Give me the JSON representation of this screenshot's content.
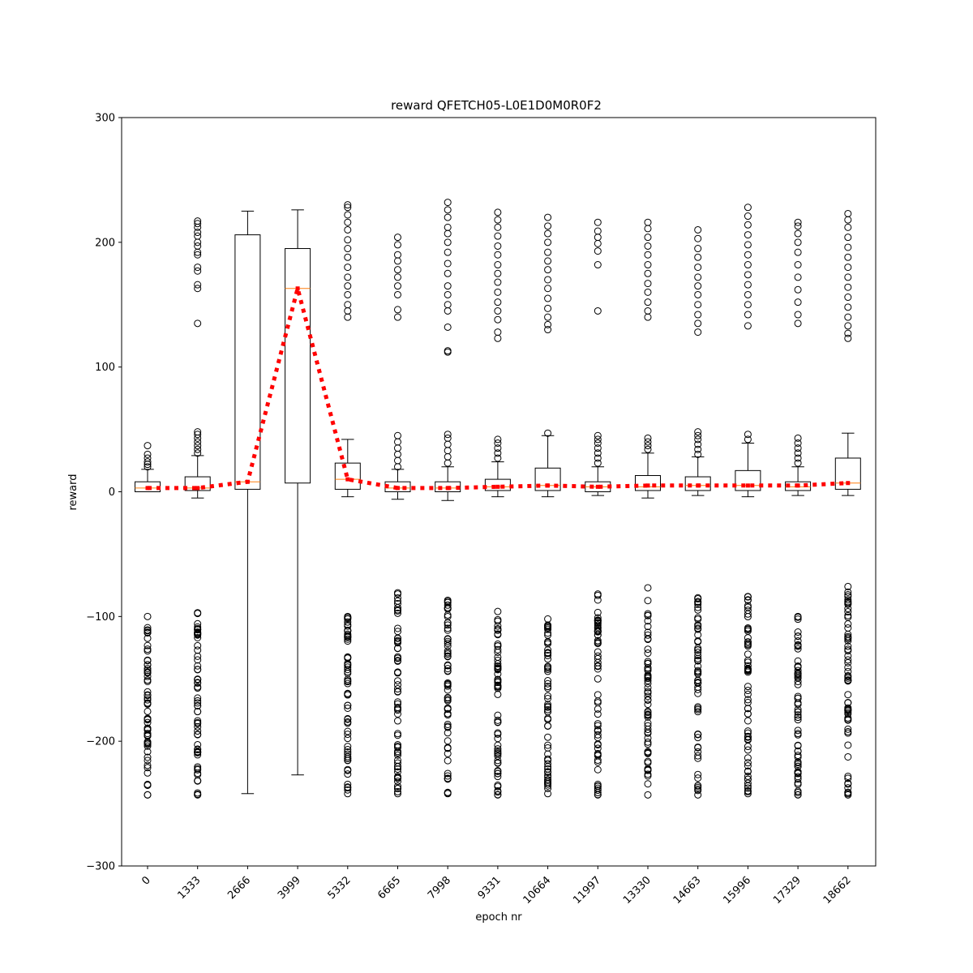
{
  "chart_data": {
    "type": "box",
    "title": "reward QFETCH05-L0E1D0M0R0F2",
    "xlabel": "epoch nr",
    "ylabel": "reward",
    "ylim": [
      -300,
      300
    ],
    "yticks": [
      -300,
      -200,
      -100,
      0,
      100,
      200,
      300
    ],
    "grid": false,
    "categories": [
      "0",
      "1333",
      "2666",
      "3999",
      "5332",
      "6665",
      "7998",
      "9331",
      "10664",
      "11997",
      "13330",
      "14663",
      "15996",
      "17329",
      "18662"
    ],
    "boxes": [
      {
        "q1": 0,
        "median": 3,
        "q3": 8,
        "whisker_low": 0,
        "whisker_high": 18,
        "outliers_high": [
          20,
          22,
          24,
          27,
          30,
          37
        ],
        "outliers_low_range": [
          -243,
          -100
        ]
      },
      {
        "q1": 1,
        "median": 3,
        "q3": 12,
        "whisker_low": -5,
        "whisker_high": 29,
        "outliers_high": [
          31,
          34,
          37,
          40,
          43,
          46,
          48,
          135,
          163,
          166,
          177,
          180,
          190,
          192,
          197,
          200,
          205,
          208,
          212,
          215,
          217
        ],
        "outliers_low_range": [
          -243,
          -97
        ]
      },
      {
        "q1": 2,
        "median": 8,
        "q3": 206,
        "whisker_low": -242,
        "whisker_high": 225,
        "outliers_high": [],
        "outliers_low_range": null
      },
      {
        "q1": 7,
        "median": 163,
        "q3": 195,
        "whisker_low": -227,
        "whisker_high": 226,
        "outliers_high": [],
        "outliers_low_range": null
      },
      {
        "q1": 2,
        "median": 10,
        "q3": 23,
        "whisker_low": -4,
        "whisker_high": 42,
        "outliers_high": [
          140,
          145,
          150,
          158,
          165,
          172,
          180,
          188,
          195,
          202,
          210,
          216,
          222,
          228,
          230
        ],
        "outliers_low_range": [
          -242,
          -100
        ]
      },
      {
        "q1": 0,
        "median": 3,
        "q3": 8,
        "whisker_low": -6,
        "whisker_high": 18,
        "outliers_high": [
          20,
          25,
          30,
          35,
          40,
          45,
          140,
          146,
          158,
          165,
          172,
          178,
          185,
          190,
          198,
          204
        ],
        "outliers_low_range": [
          -242,
          -81
        ]
      },
      {
        "q1": 0,
        "median": 3,
        "q3": 8,
        "whisker_low": -7,
        "whisker_high": 20,
        "outliers_high": [
          23,
          28,
          33,
          38,
          43,
          46,
          112,
          113,
          132,
          145,
          150,
          158,
          165,
          175,
          183,
          192,
          200,
          207,
          212,
          220,
          226,
          232
        ],
        "outliers_low_range": [
          -242,
          -87
        ]
      },
      {
        "q1": 1,
        "median": 4,
        "q3": 10,
        "whisker_low": -4,
        "whisker_high": 24,
        "outliers_high": [
          27,
          31,
          35,
          39,
          42,
          123,
          128,
          138,
          145,
          152,
          160,
          168,
          175,
          182,
          190,
          197,
          205,
          212,
          218,
          224
        ],
        "outliers_low_range": [
          -243,
          -96
        ]
      },
      {
        "q1": 1,
        "median": 5,
        "q3": 19,
        "whisker_low": -4,
        "whisker_high": 45,
        "outliers_high": [
          47,
          130,
          134,
          140,
          147,
          155,
          163,
          170,
          178,
          185,
          192,
          200,
          207,
          213,
          220
        ],
        "outliers_low_range": [
          -242,
          -102
        ]
      },
      {
        "q1": 0,
        "median": 4,
        "q3": 8,
        "whisker_low": -3,
        "whisker_high": 20,
        "outliers_high": [
          23,
          27,
          31,
          35,
          39,
          42,
          45,
          145,
          182,
          193,
          199,
          204,
          209,
          216
        ],
        "outliers_low_range": [
          -243,
          -82
        ]
      },
      {
        "q1": 1,
        "median": 4,
        "q3": 13,
        "whisker_low": -5,
        "whisker_high": 31,
        "outliers_high": [
          34,
          37,
          40,
          43,
          140,
          145,
          152,
          160,
          167,
          175,
          182,
          190,
          197,
          204,
          211,
          216
        ],
        "outliers_low_range": [
          -243,
          -77
        ]
      },
      {
        "q1": 1,
        "median": 5,
        "q3": 12,
        "whisker_low": -3,
        "whisker_high": 28,
        "outliers_high": [
          30,
          34,
          38,
          42,
          45,
          48,
          128,
          135,
          142,
          150,
          158,
          165,
          172,
          180,
          188,
          195,
          203,
          210
        ],
        "outliers_low_range": [
          -243,
          -85
        ]
      },
      {
        "q1": 1,
        "median": 5,
        "q3": 17,
        "whisker_low": -4,
        "whisker_high": 39,
        "outliers_high": [
          42,
          46,
          133,
          142,
          150,
          158,
          166,
          174,
          182,
          190,
          198,
          206,
          214,
          221,
          228
        ],
        "outliers_low_range": [
          -242,
          -84
        ]
      },
      {
        "q1": 1,
        "median": 4,
        "q3": 8,
        "whisker_low": -3,
        "whisker_high": 20,
        "outliers_high": [
          23,
          27,
          31,
          35,
          39,
          43,
          135,
          142,
          152,
          162,
          172,
          182,
          192,
          200,
          207,
          213,
          216
        ],
        "outliers_low_range": [
          -243,
          -100
        ]
      },
      {
        "q1": 2,
        "median": 7,
        "q3": 27,
        "whisker_low": -3,
        "whisker_high": 47,
        "outliers_high": [
          123,
          127,
          133,
          140,
          148,
          156,
          164,
          172,
          180,
          188,
          196,
          204,
          212,
          218,
          223
        ],
        "outliers_low_range": [
          -243,
          -76
        ]
      }
    ],
    "mean_series": {
      "style": "dotted",
      "color": "#ff0000",
      "values": [
        3,
        3,
        8,
        163,
        10,
        3,
        3,
        4,
        5,
        4,
        5,
        5,
        5,
        5,
        7
      ]
    },
    "colors": {
      "box": "#000000",
      "median": "#ff7f0e",
      "mean_line": "#ff0000"
    }
  }
}
